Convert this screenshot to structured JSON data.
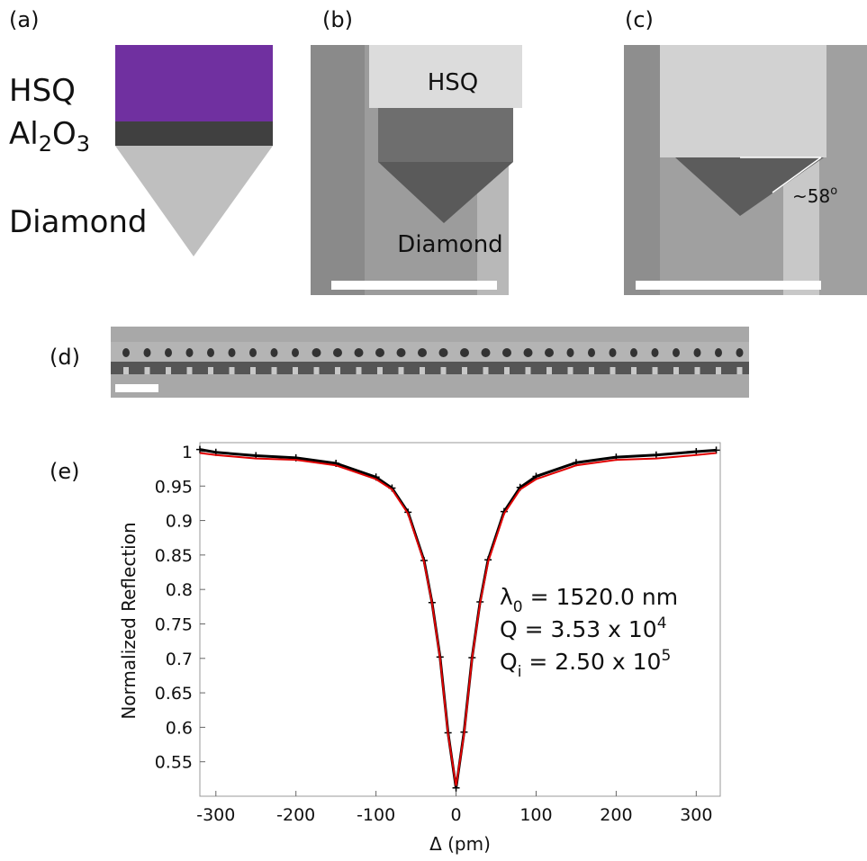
{
  "panel_a": {
    "label": "(a)",
    "hsq": "HSQ",
    "al2o3": [
      "Al",
      "2",
      "O",
      "3"
    ],
    "diamond": "Diamond"
  },
  "panel_b": {
    "label": "(b)",
    "hsq": "HSQ",
    "diamond": "Diamond"
  },
  "panel_c": {
    "label": "(c)",
    "angle": [
      "~58",
      "o"
    ]
  },
  "panel_d": {
    "label": "(d)"
  },
  "chart_data": {
    "type": "line",
    "panel_label": "(e)",
    "xlabel": "Δ (pm)",
    "ylabel": "Normalized Reflection",
    "annotations": [
      [
        "λ",
        "0",
        " = 1520.0 nm"
      ],
      [
        "Q = 3.53 x 10",
        "4"
      ],
      [
        "Q",
        "i",
        " = 2.50 x 10",
        "5"
      ]
    ],
    "x": [
      -320,
      -300,
      -250,
      -200,
      -150,
      -100,
      -80,
      -60,
      -40,
      -30,
      -20,
      -10,
      0,
      10,
      20,
      30,
      40,
      60,
      80,
      100,
      150,
      200,
      250,
      300,
      325
    ],
    "series": [
      {
        "color": "#000000",
        "marker": "+",
        "values": [
          1.003,
          0.999,
          0.994,
          0.991,
          0.983,
          0.963,
          0.947,
          0.912,
          0.842,
          0.781,
          0.702,
          0.592,
          0.512,
          0.593,
          0.701,
          0.782,
          0.843,
          0.913,
          0.948,
          0.964,
          0.984,
          0.992,
          0.995,
          1.0,
          1.002
        ]
      },
      {
        "color": "#e00000",
        "values": [
          0.998,
          0.995,
          0.99,
          0.988,
          0.98,
          0.96,
          0.945,
          0.91,
          0.84,
          0.78,
          0.7,
          0.59,
          0.515,
          0.59,
          0.7,
          0.78,
          0.84,
          0.91,
          0.945,
          0.96,
          0.98,
          0.988,
          0.99,
          0.995,
          0.998
        ]
      }
    ],
    "xlim": [
      -320,
      330
    ],
    "ylim": [
      0.5,
      1.013
    ],
    "xticks": [
      -300,
      -200,
      -100,
      0,
      100,
      200,
      300
    ],
    "yticks": [
      0.55,
      0.6,
      0.65,
      0.7,
      0.75,
      0.8,
      0.85,
      0.9,
      0.95,
      1
    ]
  }
}
